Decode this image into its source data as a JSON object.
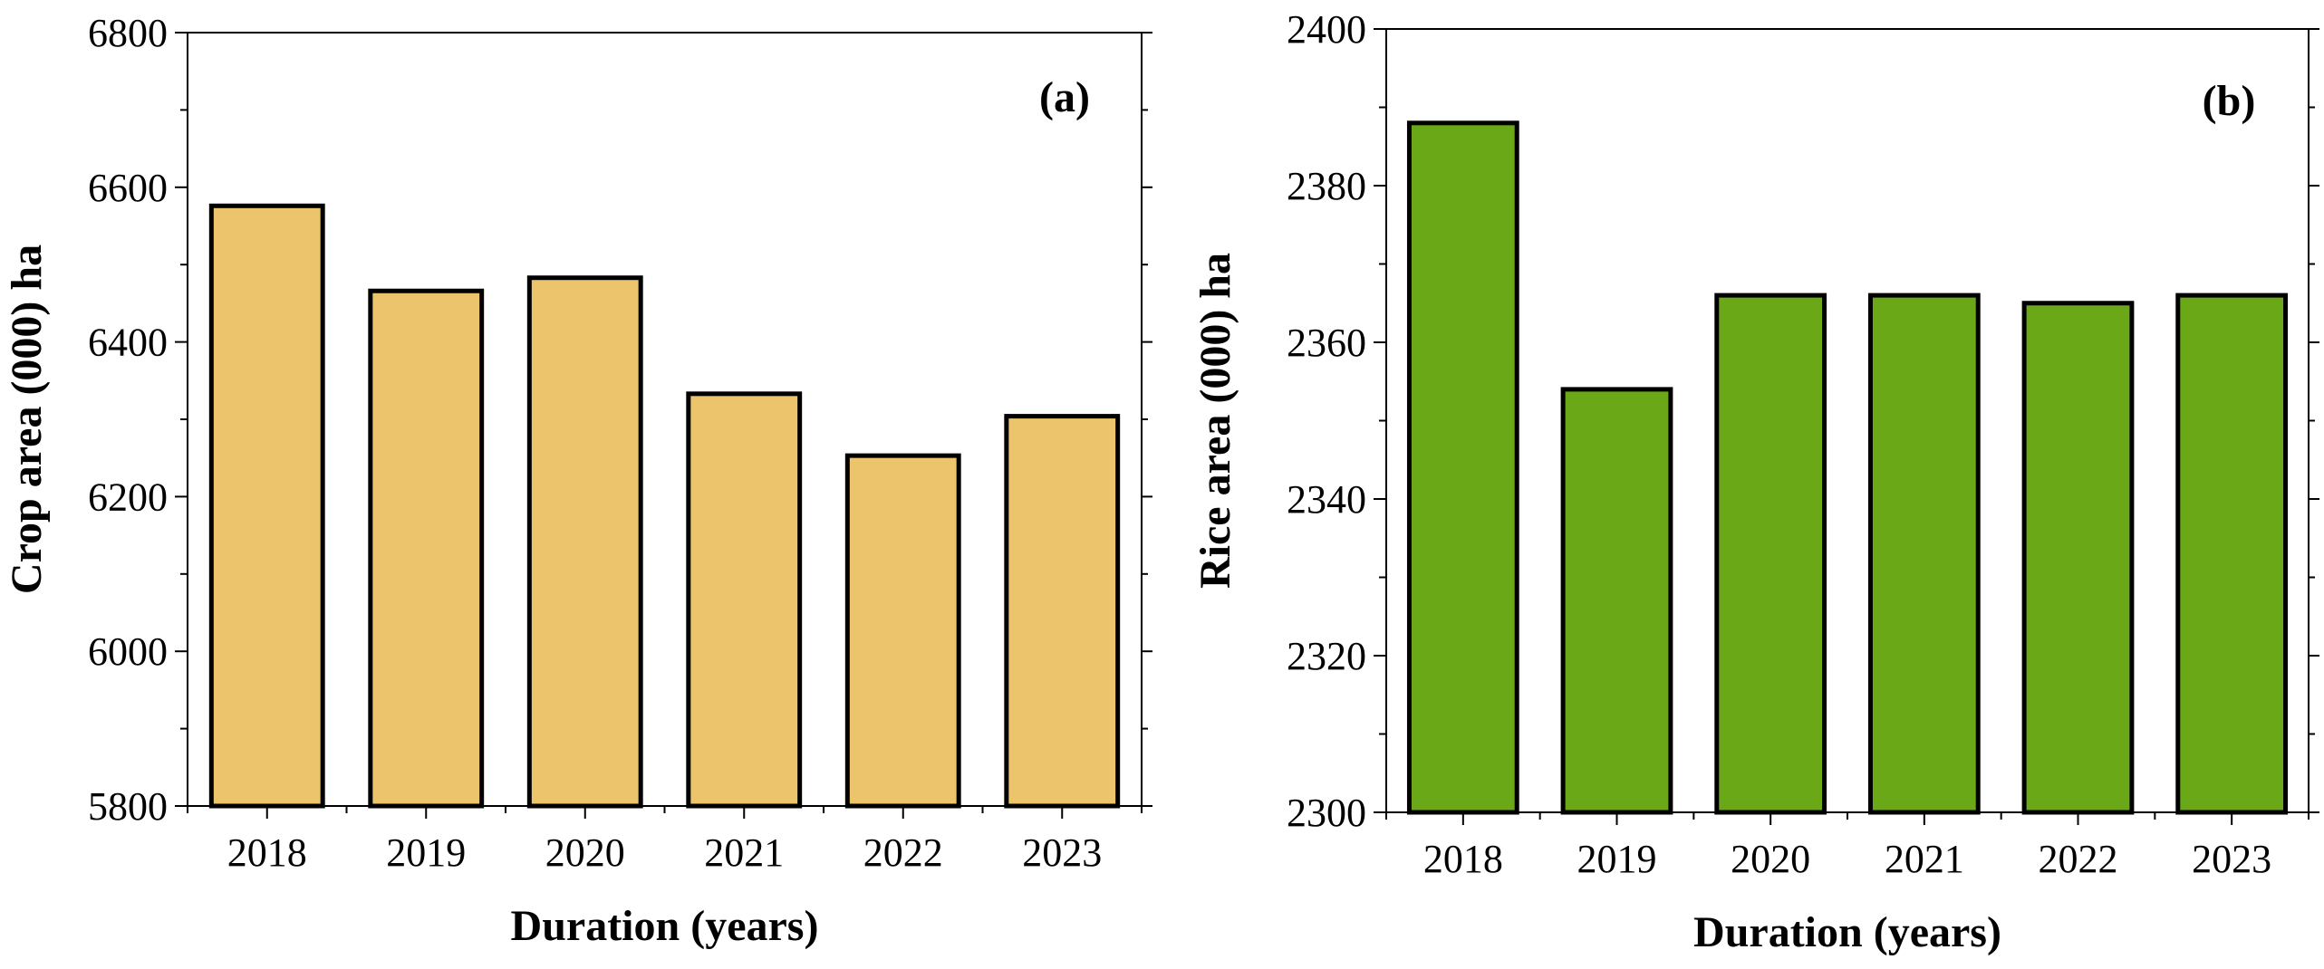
{
  "chart_data": [
    {
      "type": "bar",
      "panel_label": "(a)",
      "categories": [
        "2018",
        "2019",
        "2020",
        "2021",
        "2022",
        "2023"
      ],
      "values": [
        6576,
        6466,
        6483,
        6333,
        6253,
        6304
      ],
      "xlabel": "Duration (years)",
      "ylabel": "Crop area (000) ha",
      "ylim": [
        5800,
        6800
      ],
      "yticks": [
        5800,
        6000,
        6200,
        6400,
        6600,
        6800
      ],
      "color": "#ebc46c",
      "grid": false,
      "legend": "none"
    },
    {
      "type": "bar",
      "panel_label": "(b)",
      "categories": [
        "2018",
        "2019",
        "2020",
        "2021",
        "2022",
        "2023"
      ],
      "values": [
        2388,
        2354,
        2366,
        2366,
        2365,
        2366
      ],
      "xlabel": "Duration (years)",
      "ylabel": "Rice area (000) ha",
      "ylim": [
        2300,
        2400
      ],
      "yticks": [
        2300,
        2320,
        2340,
        2360,
        2380,
        2400
      ],
      "color": "#6aa818",
      "grid": false,
      "legend": "none"
    }
  ]
}
